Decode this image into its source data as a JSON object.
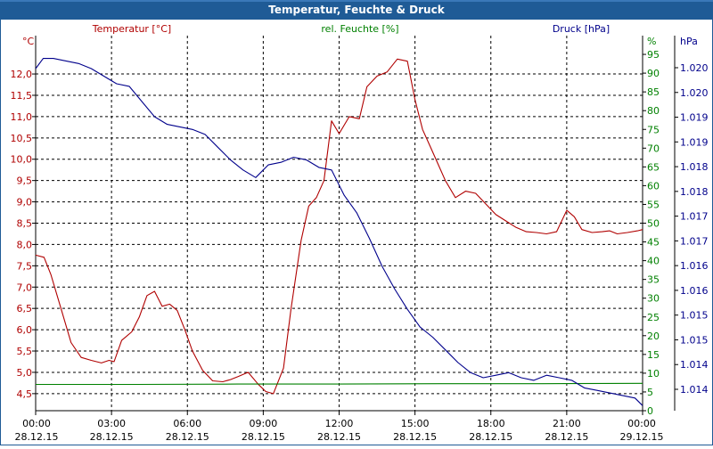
{
  "window": {
    "title": "Temperatur, Feuchte & Druck"
  },
  "colors": {
    "temperature": "#b00000",
    "humidity": "#008000",
    "pressure": "#00008b",
    "title_bar": "#1f5b96"
  },
  "chart_data": {
    "type": "line",
    "title": "Temperatur, Feuchte & Druck",
    "x_tick_labels": [
      {
        "time": "00:00",
        "date": "28.12.15"
      },
      {
        "time": "03:00",
        "date": "28.12.15"
      },
      {
        "time": "06:00",
        "date": "28.12.15"
      },
      {
        "time": "09:00",
        "date": "28.12.15"
      },
      {
        "time": "12:00",
        "date": "28.12.15"
      },
      {
        "time": "15:00",
        "date": "28.12.15"
      },
      {
        "time": "18:00",
        "date": "28.12.15"
      },
      {
        "time": "21:00",
        "date": "28.12.15"
      },
      {
        "time": "00:00",
        "date": "29.12.15"
      }
    ],
    "x_range_hours": [
      0,
      24
    ],
    "axes": {
      "temperature": {
        "label": "Temperatur [°C]",
        "unit": "°C",
        "range": [
          4.1,
          12.9
        ],
        "ticks": [
          "4,5",
          "5,0",
          "5,5",
          "6,0",
          "6,5",
          "7,0",
          "7,5",
          "8,0",
          "8,5",
          "9,0",
          "9,5",
          "10,0",
          "10,5",
          "11,0",
          "11,5",
          "12,0"
        ]
      },
      "humidity": {
        "label": "rel. Feuchte [%]",
        "unit": "%",
        "range": [
          0,
          100
        ],
        "ticks": [
          "0",
          "5",
          "10",
          "15",
          "20",
          "25",
          "30",
          "35",
          "40",
          "45",
          "50",
          "55",
          "60",
          "65",
          "70",
          "75",
          "80",
          "85",
          "90",
          "95"
        ]
      },
      "pressure": {
        "label": "Druck [hPa]",
        "unit": "hPa",
        "range": [
          1013.6,
          1021.0
        ],
        "ticks": [
          "1.014",
          "1.014",
          "1.015",
          "1.015",
          "1.016",
          "1.016",
          "1.017",
          "1.017",
          "1.018",
          "1.018",
          "1.019",
          "1.019",
          "1.020",
          "1.020"
        ]
      }
    },
    "series": [
      {
        "name": "Temperatur",
        "axis": "temperature",
        "x": [
          0,
          0.33,
          0.6,
          1,
          1.4,
          1.8,
          2.2,
          2.6,
          2.9,
          3.1,
          3.4,
          3.8,
          4.1,
          4.4,
          4.7,
          5,
          5.3,
          5.6,
          5.9,
          6.2,
          6.6,
          7,
          7.4,
          7.7,
          8,
          8.4,
          8.8,
          9.1,
          9.4,
          9.8,
          10.1,
          10.5,
          10.8,
          11.1,
          11.4,
          11.7,
          12,
          12.4,
          12.8,
          13.1,
          13.5,
          13.9,
          14.3,
          14.7,
          15,
          15.3,
          15.6,
          15.9,
          16.2,
          16.6,
          17,
          17.4,
          17.8,
          18.2,
          18.6,
          19,
          19.4,
          19.8,
          20.2,
          20.6,
          21,
          21.3,
          21.6,
          22,
          22.4,
          22.7,
          23,
          23.4,
          23.8,
          24
        ],
        "values": [
          7.75,
          7.7,
          7.3,
          6.5,
          5.7,
          5.35,
          5.28,
          5.22,
          5.28,
          5.25,
          5.75,
          5.95,
          6.3,
          6.8,
          6.9,
          6.55,
          6.6,
          6.45,
          6.0,
          5.5,
          5.05,
          4.8,
          4.78,
          4.83,
          4.9,
          5.0,
          4.72,
          4.55,
          4.5,
          5.1,
          6.5,
          8.1,
          8.9,
          9.1,
          9.5,
          10.9,
          10.6,
          11.0,
          10.95,
          11.7,
          11.95,
          12.05,
          12.35,
          12.3,
          11.4,
          10.7,
          10.3,
          9.9,
          9.5,
          9.1,
          9.25,
          9.2,
          8.95,
          8.7,
          8.55,
          8.4,
          8.3,
          8.28,
          8.25,
          8.3,
          8.8,
          8.65,
          8.35,
          8.28,
          8.3,
          8.32,
          8.25,
          8.28,
          8.32,
          8.35
        ]
      },
      {
        "name": "rel. Feuchte",
        "axis": "humidity",
        "x": [
          0,
          4,
          8,
          12,
          16,
          20,
          24
        ],
        "values": [
          7.0,
          7.0,
          7.1,
          7.1,
          7.2,
          7.2,
          7.3
        ]
      },
      {
        "name": "Druck",
        "axis": "pressure",
        "x": [
          0,
          0.3,
          0.7,
          1.2,
          1.7,
          2.2,
          2.7,
          3.2,
          3.7,
          4.2,
          4.7,
          5.2,
          5.7,
          6.2,
          6.7,
          7.2,
          7.7,
          8.2,
          8.7,
          9.2,
          9.7,
          10.2,
          10.7,
          11.2,
          11.7,
          12.2,
          12.7,
          13.2,
          13.7,
          14.2,
          14.7,
          15.2,
          15.7,
          16.2,
          16.7,
          17.2,
          17.7,
          18.2,
          18.7,
          19.2,
          19.7,
          20.2,
          20.7,
          21.2,
          21.7,
          22.2,
          22.7,
          23.2,
          23.7,
          24
        ],
        "values": [
          1020.35,
          1020.55,
          1020.55,
          1020.5,
          1020.45,
          1020.35,
          1020.2,
          1020.05,
          1020.0,
          1019.7,
          1019.4,
          1019.25,
          1019.2,
          1019.15,
          1019.05,
          1018.8,
          1018.55,
          1018.35,
          1018.2,
          1018.45,
          1018.5,
          1018.6,
          1018.55,
          1018.4,
          1018.35,
          1017.85,
          1017.5,
          1017.0,
          1016.45,
          1016.0,
          1015.6,
          1015.25,
          1015.05,
          1014.8,
          1014.55,
          1014.35,
          1014.25,
          1014.3,
          1014.35,
          1014.25,
          1014.2,
          1014.3,
          1014.25,
          1014.2,
          1014.05,
          1014.0,
          1013.95,
          1013.9,
          1013.85,
          1013.7
        ]
      }
    ]
  }
}
